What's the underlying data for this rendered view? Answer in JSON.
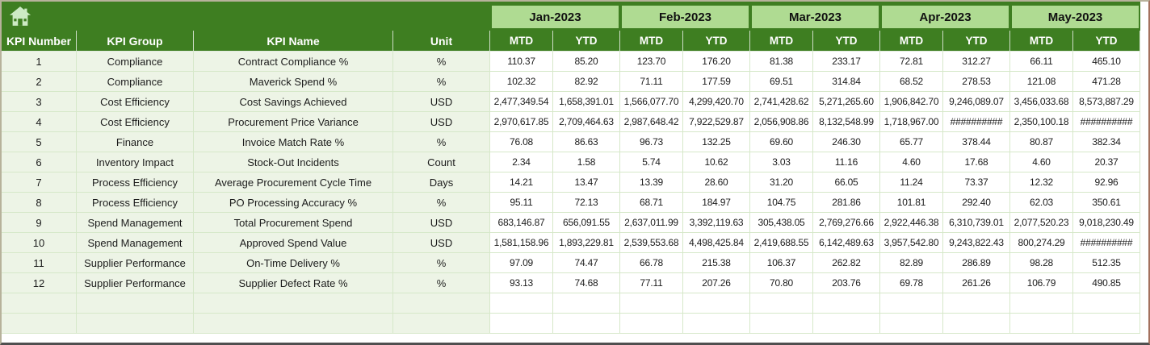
{
  "header": {
    "home_icon": "home"
  },
  "columns": [
    "KPI Number",
    "KPI Group",
    "KPI Name",
    "Unit"
  ],
  "months": [
    "Jan-2023",
    "Feb-2023",
    "Mar-2023",
    "Apr-2023",
    "May-2023"
  ],
  "sub_headers": [
    "MTD",
    "YTD"
  ],
  "rows": [
    {
      "kpi_number": "1",
      "kpi_group": "Compliance",
      "kpi_name": "Contract Compliance %",
      "unit": "%",
      "values": [
        "110.37",
        "85.20",
        "123.70",
        "176.20",
        "81.38",
        "233.17",
        "72.81",
        "312.27",
        "66.11",
        "465.10"
      ]
    },
    {
      "kpi_number": "2",
      "kpi_group": "Compliance",
      "kpi_name": "Maverick Spend %",
      "unit": "%",
      "values": [
        "102.32",
        "82.92",
        "71.11",
        "177.59",
        "69.51",
        "314.84",
        "68.52",
        "278.53",
        "121.08",
        "471.28"
      ]
    },
    {
      "kpi_number": "3",
      "kpi_group": "Cost Efficiency",
      "kpi_name": "Cost Savings Achieved",
      "unit": "USD",
      "values": [
        "2,477,349.54",
        "1,658,391.01",
        "1,566,077.70",
        "4,299,420.70",
        "2,741,428.62",
        "5,271,265.60",
        "1,906,842.70",
        "9,246,089.07",
        "3,456,033.68",
        "8,573,887.29"
      ]
    },
    {
      "kpi_number": "4",
      "kpi_group": "Cost Efficiency",
      "kpi_name": "Procurement Price Variance",
      "unit": "USD",
      "values": [
        "2,970,617.85",
        "2,709,464.63",
        "2,987,648.42",
        "7,922,529.87",
        "2,056,908.86",
        "8,132,548.99",
        "1,718,967.00",
        "##########",
        "2,350,100.18",
        "##########"
      ]
    },
    {
      "kpi_number": "5",
      "kpi_group": "Finance",
      "kpi_name": "Invoice Match Rate %",
      "unit": "%",
      "values": [
        "76.08",
        "86.63",
        "96.73",
        "132.25",
        "69.60",
        "246.30",
        "65.77",
        "378.44",
        "80.87",
        "382.34"
      ]
    },
    {
      "kpi_number": "6",
      "kpi_group": "Inventory Impact",
      "kpi_name": "Stock-Out Incidents",
      "unit": "Count",
      "values": [
        "2.34",
        "1.58",
        "5.74",
        "10.62",
        "3.03",
        "11.16",
        "4.60",
        "17.68",
        "4.60",
        "20.37"
      ]
    },
    {
      "kpi_number": "7",
      "kpi_group": "Process Efficiency",
      "kpi_name": "Average Procurement Cycle Time",
      "unit": "Days",
      "values": [
        "14.21",
        "13.47",
        "13.39",
        "28.60",
        "31.20",
        "66.05",
        "11.24",
        "73.37",
        "12.32",
        "92.96"
      ]
    },
    {
      "kpi_number": "8",
      "kpi_group": "Process Efficiency",
      "kpi_name": "PO Processing Accuracy %",
      "unit": "%",
      "values": [
        "95.11",
        "72.13",
        "68.71",
        "184.97",
        "104.75",
        "281.86",
        "101.81",
        "292.40",
        "62.03",
        "350.61"
      ]
    },
    {
      "kpi_number": "9",
      "kpi_group": "Spend Management",
      "kpi_name": "Total Procurement Spend",
      "unit": "USD",
      "values": [
        "683,146.87",
        "656,091.55",
        "2,637,011.99",
        "3,392,119.63",
        "305,438.05",
        "2,769,276.66",
        "2,922,446.38",
        "6,310,739.01",
        "2,077,520.23",
        "9,018,230.49"
      ]
    },
    {
      "kpi_number": "10",
      "kpi_group": "Spend Management",
      "kpi_name": "Approved Spend Value",
      "unit": "USD",
      "values": [
        "1,581,158.96",
        "1,893,229.81",
        "2,539,553.68",
        "4,498,425.84",
        "2,419,688.55",
        "6,142,489.63",
        "3,957,542.80",
        "9,243,822.43",
        "800,274.29",
        "##########"
      ]
    },
    {
      "kpi_number": "11",
      "kpi_group": "Supplier Performance",
      "kpi_name": "On-Time Delivery %",
      "unit": "%",
      "values": [
        "97.09",
        "74.47",
        "66.78",
        "215.38",
        "106.37",
        "262.82",
        "82.89",
        "286.89",
        "98.28",
        "512.35"
      ]
    },
    {
      "kpi_number": "12",
      "kpi_group": "Supplier Performance",
      "kpi_name": "Supplier Defect Rate %",
      "unit": "%",
      "values": [
        "93.13",
        "74.68",
        "77.11",
        "207.26",
        "70.80",
        "203.76",
        "69.78",
        "261.26",
        "106.79",
        "490.85"
      ]
    }
  ],
  "empty_rows": 2,
  "colors": {
    "dark_green": "#3E7E21",
    "light_green": "#AFDB92",
    "row_fill": "#EDF4E6",
    "gridline": "#D6E8C9",
    "header_text": "#FFFFFF",
    "data_text": "#1C1C1C"
  }
}
